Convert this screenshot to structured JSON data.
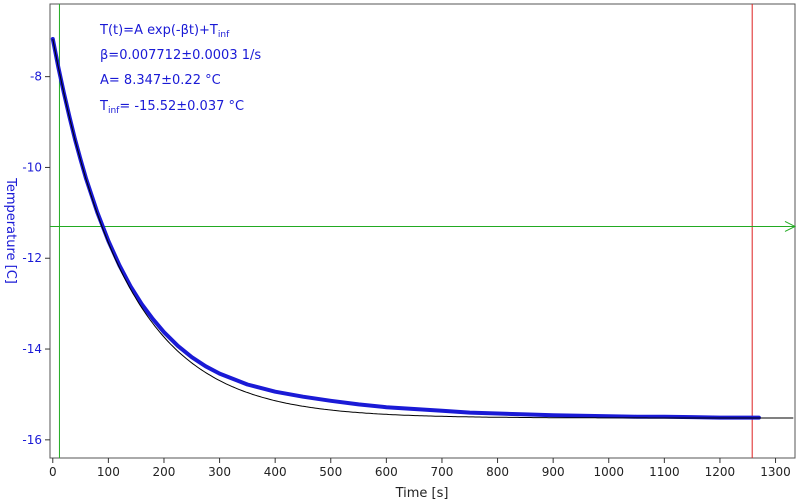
{
  "chart_data": {
    "type": "line",
    "xlabel": "Time [s]",
    "ylabel": "Temperature [C]",
    "xlim": [
      -5,
      1335
    ],
    "ylim": [
      -16.4,
      -6.4
    ],
    "xticks": [
      0,
      100,
      200,
      300,
      400,
      500,
      600,
      700,
      800,
      900,
      1000,
      1100,
      1200,
      1300
    ],
    "yticks": [
      -8,
      -10,
      -12,
      -14,
      -16
    ],
    "fit": {
      "formula_main": "T(t)=A exp(-βt)+T",
      "formula_sub": "inf",
      "beta": "β=0.007712±0.0003 1/s",
      "A": "A= 8.347±0.22 °C",
      "tinf_main": "T",
      "tinf_sub": "inf",
      "tinf_rest": "= -15.52±0.037 °C",
      "params": {
        "A": 8.347,
        "beta": 0.007712,
        "T_inf": -15.52
      }
    },
    "series": [
      {
        "color": "#1a1ad6",
        "x": [
          0,
          10,
          20,
          30,
          40,
          50,
          60,
          80,
          100,
          120,
          140,
          160,
          180,
          200,
          225,
          250,
          275,
          300,
          350,
          400,
          450,
          500,
          550,
          600,
          650,
          700,
          750,
          800,
          850,
          900,
          950,
          1000,
          1050,
          1100,
          1150,
          1200,
          1250,
          1270
        ],
        "y": [
          -7.17,
          -7.79,
          -8.36,
          -8.89,
          -9.38,
          -9.83,
          -10.25,
          -10.99,
          -11.62,
          -12.16,
          -12.62,
          -13.01,
          -13.34,
          -13.63,
          -13.93,
          -14.18,
          -14.38,
          -14.54,
          -14.78,
          -14.94,
          -15.05,
          -15.14,
          -15.22,
          -15.28,
          -15.32,
          -15.36,
          -15.4,
          -15.42,
          -15.44,
          -15.46,
          -15.47,
          -15.48,
          -15.49,
          -15.49,
          -15.5,
          -15.51,
          -15.51,
          -15.51
        ]
      }
    ],
    "cursors": {
      "vertical_green_x": 12,
      "vertical_red_x": 1258,
      "horizontal_green_y": -11.3,
      "asymptote_y": -15.52
    },
    "colors": {
      "data": "#1a1ad6",
      "fit": "#000000",
      "cursor_green": "#22aa22",
      "cursor_red": "#dd2222",
      "tick_y": "#1a1ad6"
    },
    "grid": false
  }
}
